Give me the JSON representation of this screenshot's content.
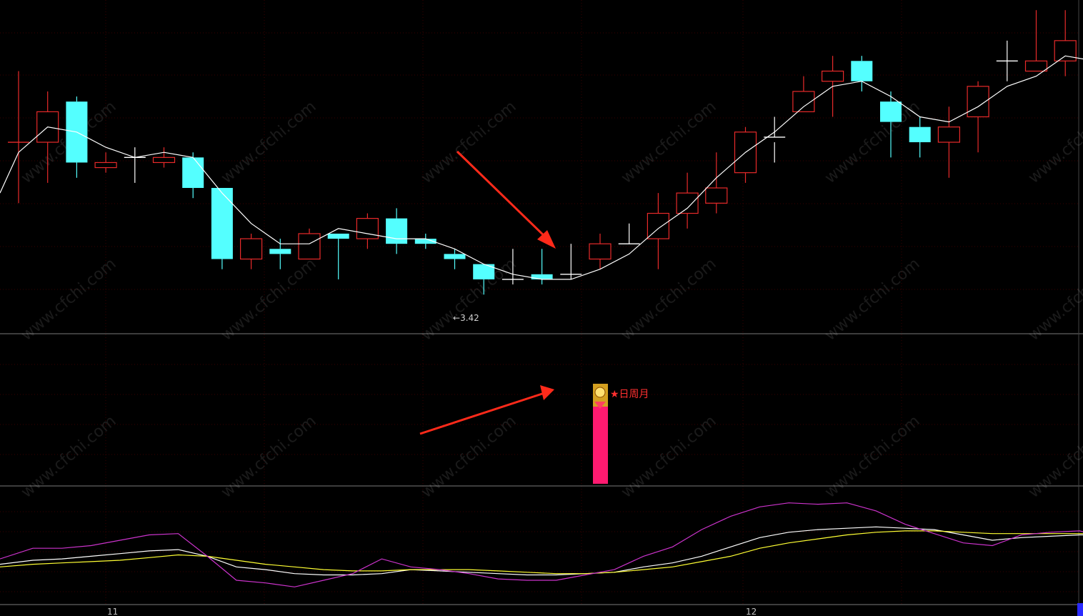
{
  "chart_data": [
    {
      "type": "candlestick",
      "panel": "price",
      "low_marker": "3.42",
      "dates_label": [
        "11",
        "12"
      ],
      "candles": [
        {
          "o": 3.72,
          "h": 3.86,
          "l": 3.6,
          "c": 3.72,
          "color": "red"
        },
        {
          "o": 3.78,
          "h": 3.82,
          "l": 3.64,
          "c": 3.72,
          "color": "red"
        },
        {
          "o": 3.8,
          "h": 3.81,
          "l": 3.65,
          "c": 3.68,
          "color": "cyan"
        },
        {
          "o": 3.67,
          "h": 3.7,
          "l": 3.66,
          "c": 3.68,
          "color": "red"
        },
        {
          "o": 3.69,
          "h": 3.71,
          "l": 3.64,
          "c": 3.69,
          "color": "white"
        },
        {
          "o": 3.68,
          "h": 3.71,
          "l": 3.67,
          "c": 3.69,
          "color": "red"
        },
        {
          "o": 3.69,
          "h": 3.7,
          "l": 3.61,
          "c": 3.63,
          "color": "cyan"
        },
        {
          "o": 3.63,
          "h": 3.63,
          "l": 3.47,
          "c": 3.49,
          "color": "cyan"
        },
        {
          "o": 3.49,
          "h": 3.54,
          "l": 3.47,
          "c": 3.53,
          "color": "red"
        },
        {
          "o": 3.51,
          "h": 3.53,
          "l": 3.47,
          "c": 3.5,
          "color": "cyan"
        },
        {
          "o": 3.49,
          "h": 3.55,
          "l": 3.49,
          "c": 3.54,
          "color": "red"
        },
        {
          "o": 3.54,
          "h": 3.54,
          "l": 3.45,
          "c": 3.53,
          "color": "cyan"
        },
        {
          "o": 3.53,
          "h": 3.58,
          "l": 3.51,
          "c": 3.57,
          "color": "red"
        },
        {
          "o": 3.57,
          "h": 3.59,
          "l": 3.5,
          "c": 3.52,
          "color": "cyan"
        },
        {
          "o": 3.53,
          "h": 3.54,
          "l": 3.51,
          "c": 3.52,
          "color": "cyan"
        },
        {
          "o": 3.5,
          "h": 3.51,
          "l": 3.47,
          "c": 3.49,
          "color": "cyan"
        },
        {
          "o": 3.48,
          "h": 3.48,
          "l": 3.42,
          "c": 3.45,
          "color": "cyan"
        },
        {
          "o": 3.45,
          "h": 3.51,
          "l": 3.44,
          "c": 3.45,
          "color": "white"
        },
        {
          "o": 3.46,
          "h": 3.51,
          "l": 3.44,
          "c": 3.45,
          "color": "cyan"
        },
        {
          "o": 3.46,
          "h": 3.52,
          "l": 3.45,
          "c": 3.46,
          "color": "white"
        },
        {
          "o": 3.49,
          "h": 3.54,
          "l": 3.47,
          "c": 3.52,
          "color": "red"
        },
        {
          "o": 3.52,
          "h": 3.56,
          "l": 3.52,
          "c": 3.52,
          "color": "white"
        },
        {
          "o": 3.53,
          "h": 3.62,
          "l": 3.47,
          "c": 3.58,
          "color": "red"
        },
        {
          "o": 3.58,
          "h": 3.66,
          "l": 3.55,
          "c": 3.62,
          "color": "red"
        },
        {
          "o": 3.6,
          "h": 3.7,
          "l": 3.58,
          "c": 3.63,
          "color": "red"
        },
        {
          "o": 3.66,
          "h": 3.75,
          "l": 3.64,
          "c": 3.74,
          "color": "red"
        },
        {
          "o": 3.72,
          "h": 3.77,
          "l": 3.68,
          "c": 3.73,
          "color": "white"
        },
        {
          "o": 3.78,
          "h": 3.85,
          "l": 3.78,
          "c": 3.82,
          "color": "red"
        },
        {
          "o": 3.84,
          "h": 3.89,
          "l": 3.77,
          "c": 3.86,
          "color": "red"
        },
        {
          "o": 3.88,
          "h": 3.89,
          "l": 3.82,
          "c": 3.84,
          "color": "cyan"
        },
        {
          "o": 3.8,
          "h": 3.82,
          "l": 3.69,
          "c": 3.76,
          "color": "cyan"
        },
        {
          "o": 3.75,
          "h": 3.77,
          "l": 3.69,
          "c": 3.72,
          "color": "cyan"
        },
        {
          "o": 3.72,
          "h": 3.79,
          "l": 3.65,
          "c": 3.75,
          "color": "red"
        },
        {
          "o": 3.77,
          "h": 3.84,
          "l": 3.7,
          "c": 3.83,
          "color": "red"
        },
        {
          "o": 3.88,
          "h": 3.92,
          "l": 3.84,
          "c": 3.88,
          "color": "white"
        },
        {
          "o": 3.86,
          "h": 3.98,
          "l": 3.86,
          "c": 3.88,
          "color": "red"
        },
        {
          "o": 3.88,
          "h": 3.98,
          "l": 3.85,
          "c": 3.92,
          "color": "red"
        },
        {
          "o": 3.92,
          "h": 3.94,
          "l": 3.8,
          "c": 3.85,
          "color": "cyan"
        },
        {
          "o": 3.86,
          "h": 3.92,
          "l": 3.81,
          "c": 3.89,
          "color": "red"
        }
      ],
      "ma": [
        3.7,
        3.75,
        3.74,
        3.71,
        3.69,
        3.7,
        3.69,
        3.62,
        3.56,
        3.52,
        3.52,
        3.55,
        3.54,
        3.53,
        3.53,
        3.51,
        3.48,
        3.46,
        3.45,
        3.45,
        3.47,
        3.5,
        3.55,
        3.59,
        3.65,
        3.7,
        3.74,
        3.79,
        3.83,
        3.84,
        3.81,
        3.77,
        3.76,
        3.79,
        3.83,
        3.85,
        3.89,
        3.88,
        3.88
      ]
    },
    {
      "type": "bar",
      "panel": "signal",
      "label": "日周月",
      "bar_index": 20,
      "value": 1
    },
    {
      "type": "line",
      "panel": "kdj",
      "series": [
        {
          "name": "K",
          "color": "#ffffff",
          "values": [
            52,
            55,
            56,
            58,
            60,
            62,
            63,
            58,
            50,
            48,
            45,
            44,
            44,
            45,
            48,
            47,
            46,
            45,
            44,
            44,
            45,
            46,
            50,
            53,
            58,
            65,
            72,
            76,
            78,
            79,
            80,
            79,
            78,
            74,
            70,
            72,
            73,
            74,
            74,
            73
          ]
        },
        {
          "name": "D",
          "color": "#ffff33",
          "values": [
            50,
            52,
            53,
            54,
            55,
            57,
            59,
            58,
            55,
            52,
            50,
            48,
            47,
            47,
            48,
            48,
            48,
            47,
            46,
            45,
            45,
            46,
            48,
            50,
            54,
            58,
            64,
            68,
            71,
            74,
            76,
            77,
            77,
            76,
            75,
            75,
            75,
            75,
            75,
            74
          ]
        },
        {
          "name": "J",
          "color": "#cc33cc",
          "values": [
            56,
            64,
            64,
            66,
            70,
            74,
            75,
            58,
            40,
            38,
            35,
            40,
            45,
            56,
            50,
            48,
            45,
            41,
            40,
            40,
            44,
            48,
            58,
            65,
            78,
            88,
            95,
            98,
            97,
            98,
            92,
            82,
            75,
            68,
            66,
            74,
            76,
            77,
            72,
            72
          ]
        }
      ]
    }
  ],
  "colors": {
    "up": "#e82a2a",
    "down": "#54ffff",
    "flat": "#ffffff",
    "ma": "#ffffff",
    "signal_bar": "#ff1a70",
    "signal_label": "#ff3030",
    "arrow": "#ff2a1a",
    "grid": "#3a0000",
    "separator": "#7a7a7a"
  },
  "watermark": "www.cfchi.com"
}
